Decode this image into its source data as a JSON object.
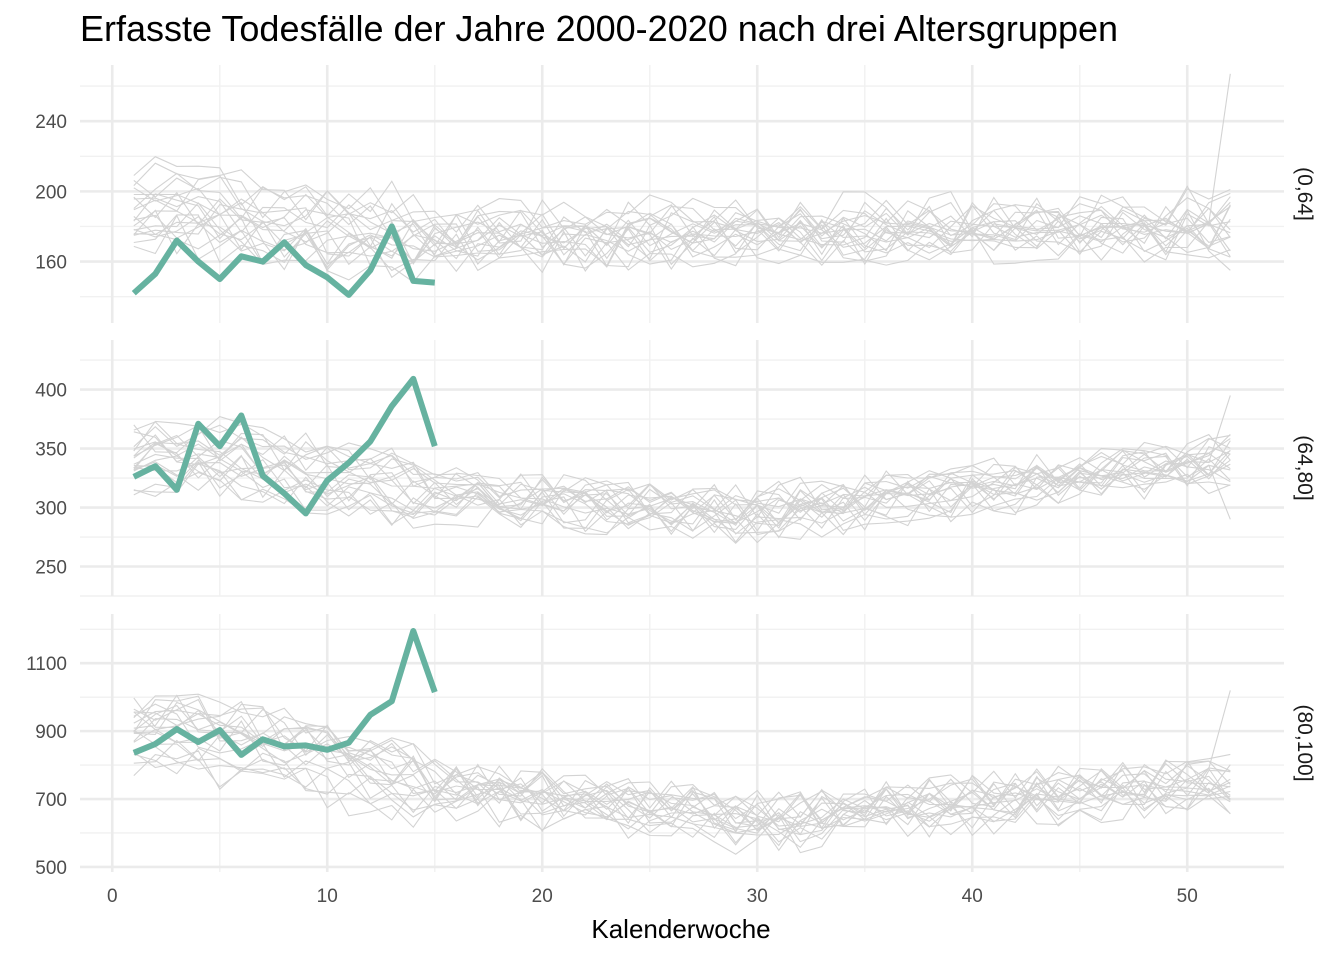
{
  "chart_data": {
    "type": "line",
    "title": "Erfasste Todesfälle der Jahre 2000-2020 nach drei Altersgruppen",
    "xlabel": "Kalenderwoche",
    "ylabel": "",
    "xlim": [
      -1.5,
      54.5
    ],
    "x_ticks": [
      0,
      10,
      20,
      30,
      40,
      50
    ],
    "grid": true,
    "legend": "none",
    "colors": {
      "highlight": "#66b2a0",
      "background_lines": "#d3d3d3",
      "grid": "#ebebeb"
    },
    "facets": [
      {
        "strip_label": "(0,64]",
        "ylim": [
          125,
          272
        ],
        "y_ticks": [
          160,
          200,
          240
        ],
        "highlight_series": {
          "x": [
            1,
            2,
            3,
            4,
            5,
            6,
            7,
            8,
            9,
            10,
            11,
            12,
            13,
            14,
            15
          ],
          "values": [
            142,
            153,
            172,
            160,
            150,
            163,
            160,
            171,
            158,
            151,
            141,
            155,
            180,
            149,
            148
          ]
        },
        "background_pattern": {
          "weeks_1_15_mean": [
            190,
            192,
            191,
            190,
            189,
            188,
            186,
            185,
            183,
            181,
            180,
            178,
            177,
            176,
            175
          ],
          "spread": 25,
          "late_year_mean": 182,
          "week_52_max": 267,
          "week_52_min": 155
        }
      },
      {
        "strip_label": "(64,80]",
        "ylim": [
          225,
          442
        ],
        "y_ticks": [
          250,
          300,
          350,
          400
        ],
        "highlight_series": {
          "x": [
            1,
            2,
            3,
            4,
            5,
            6,
            7,
            8,
            9,
            10,
            11,
            12,
            13,
            14,
            15
          ],
          "values": [
            326,
            335,
            315,
            371,
            352,
            378,
            327,
            312,
            295,
            323,
            338,
            356,
            386,
            409,
            352
          ]
        },
        "background_pattern": {
          "weeks_1_15_mean": [
            340,
            345,
            342,
            343,
            340,
            338,
            335,
            333,
            330,
            326,
            322,
            318,
            315,
            313,
            311
          ],
          "spread": 30,
          "summer_mean": 295,
          "late_year_mean": 340,
          "week_52_max": 395,
          "week_52_min": 290
        }
      },
      {
        "strip_label": "(80,100]",
        "ylim": [
          485,
          1245
        ],
        "y_ticks": [
          500,
          700,
          900,
          1100
        ],
        "highlight_series": {
          "x": [
            1,
            2,
            3,
            4,
            5,
            6,
            7,
            8,
            9,
            10,
            11,
            12,
            13,
            14,
            15
          ],
          "values": [
            836,
            862,
            906,
            868,
            903,
            830,
            876,
            855,
            858,
            845,
            866,
            948,
            988,
            1195,
            1015
          ]
        },
        "background_pattern": {
          "weeks_1_15_mean": [
            880,
            890,
            885,
            875,
            865,
            850,
            840,
            830,
            815,
            800,
            785,
            770,
            755,
            740,
            725
          ],
          "spread": 110,
          "summer_mean": 630,
          "late_year_mean": 740,
          "week_52_max": 1020,
          "week_52_min": 700
        }
      }
    ]
  }
}
